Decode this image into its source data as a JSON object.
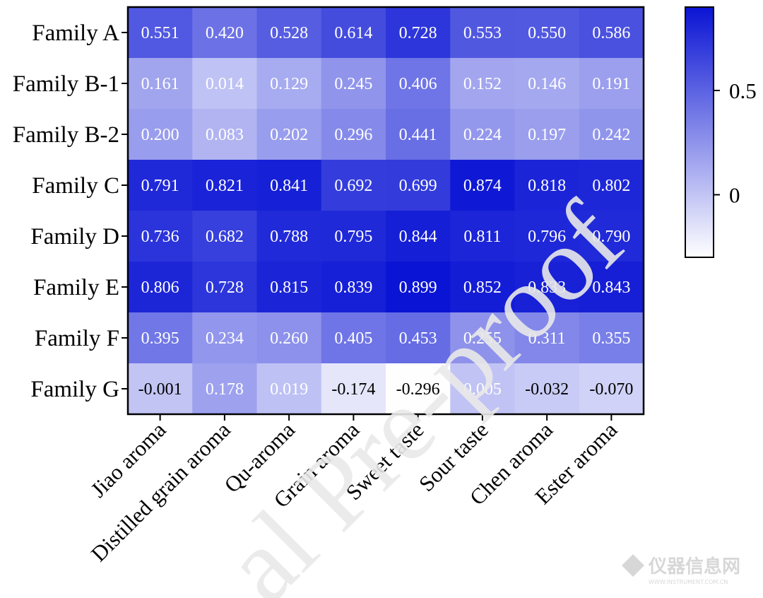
{
  "chart_data": {
    "type": "heatmap",
    "title": "",
    "rows": [
      "Family A",
      "Family B-1",
      "Family B-2",
      "Family C",
      "Family D",
      "Family E",
      "Family F",
      "Family G"
    ],
    "columns": [
      "Jiao aroma",
      "Distilled grain aroma",
      "Qu-aroma",
      "Grain aroma",
      "Sweet taste",
      "Sour taste",
      "Chen aroma",
      "Ester aroma"
    ],
    "values": [
      [
        0.551,
        0.42,
        0.528,
        0.614,
        0.728,
        0.553,
        0.55,
        0.586
      ],
      [
        0.161,
        0.014,
        0.129,
        0.245,
        0.406,
        0.152,
        0.146,
        0.191
      ],
      [
        0.2,
        0.083,
        0.202,
        0.296,
        0.441,
        0.224,
        0.197,
        0.242
      ],
      [
        0.791,
        0.821,
        0.841,
        0.692,
        0.699,
        0.874,
        0.818,
        0.802
      ],
      [
        0.736,
        0.682,
        0.788,
        0.795,
        0.844,
        0.811,
        0.796,
        0.79
      ],
      [
        0.806,
        0.728,
        0.815,
        0.839,
        0.899,
        0.852,
        0.833,
        0.843
      ],
      [
        0.395,
        0.234,
        0.26,
        0.405,
        0.453,
        0.255,
        0.311,
        0.355
      ],
      [
        -0.001,
        0.178,
        0.019,
        -0.174,
        -0.296,
        0.005,
        -0.032,
        -0.07
      ]
    ],
    "labels": [
      [
        "0.551",
        "0.420",
        "0.528",
        "0.614",
        "0.728",
        "0.553",
        "0.550",
        "0.586"
      ],
      [
        "0.161",
        "0.014",
        "0.129",
        "0.245",
        "0.406",
        "0.152",
        "0.146",
        "0.191"
      ],
      [
        "0.200",
        "0.083",
        "0.202",
        "0.296",
        "0.441",
        "0.224",
        "0.197",
        "0.242"
      ],
      [
        "0.791",
        "0.821",
        "0.841",
        "0.692",
        "0.699",
        "0.874",
        "0.818",
        "0.802"
      ],
      [
        "0.736",
        "0.682",
        "0.788",
        "0.795",
        "0.844",
        "0.811",
        "0.796",
        "0.790"
      ],
      [
        "0.806",
        "0.728",
        "0.815",
        "0.839",
        "0.899",
        "0.852",
        "0.833",
        "0.843"
      ],
      [
        "0.395",
        "0.234",
        "0.260",
        "0.405",
        "0.453",
        "0.255",
        "0.311",
        "0.355"
      ],
      [
        "-0.001",
        "0.178",
        "0.019",
        "-0.174",
        "-0.296",
        "0.005",
        "-0.032",
        "-0.070"
      ]
    ],
    "colorbar": {
      "range": [
        -0.3,
        0.9
      ],
      "ticks": [
        0,
        0.5
      ],
      "tick_labels": [
        "0",
        "0.5"
      ],
      "color_low": "#ffffff",
      "color_high": "#0a14d4"
    },
    "dark_label_color": "#000000",
    "light_label_color": "#ffffff"
  },
  "watermark": {
    "text": "al Pre-proof",
    "logo_text": "仪器信息网",
    "logo_subtext": "WWW.INSTRUMENT.COM.CN"
  }
}
